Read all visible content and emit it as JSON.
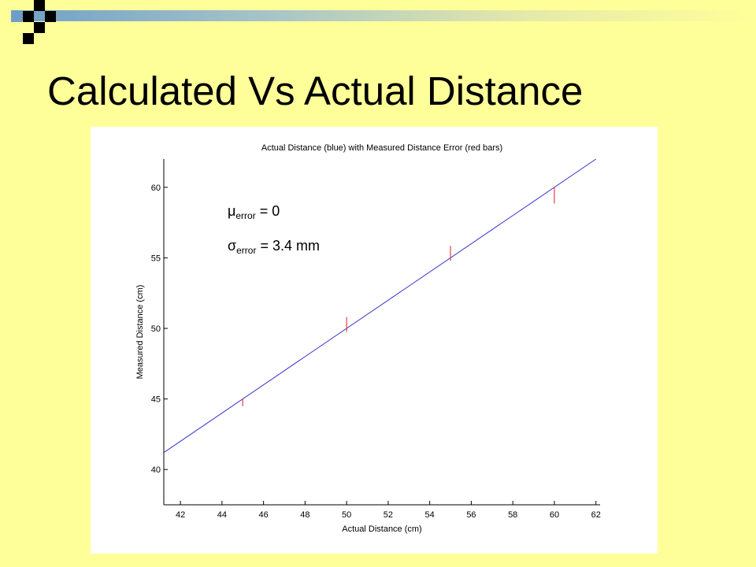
{
  "slide": {
    "title": "Calculated Vs Actual Distance"
  },
  "colors": {
    "background": "#ffff99",
    "fit_line": "#3333cc",
    "error_bars": "#e0404a"
  },
  "chart_data": {
    "type": "line",
    "title": "Actual Distance (blue) with Measured Distance Error (red bars)",
    "xlabel": "Actual Distance (cm)",
    "ylabel": "Measured Distance (cm)",
    "xlim": [
      41.2,
      62.2
    ],
    "ylim": [
      37.5,
      62.0
    ],
    "xticks": [
      42,
      44,
      46,
      48,
      50,
      52,
      54,
      56,
      58,
      60,
      62
    ],
    "yticks": [
      40,
      45,
      50,
      55,
      60
    ],
    "grid": false,
    "series": [
      {
        "style": "line",
        "color": "#3333cc",
        "x": [
          41.2,
          62.0
        ],
        "y": [
          41.2,
          62.0
        ]
      },
      {
        "style": "error_bars",
        "color": "#e0404a",
        "points": [
          {
            "x": 45,
            "low": 44.5,
            "high": 45.05
          },
          {
            "x": 50,
            "low": 49.75,
            "high": 50.8
          },
          {
            "x": 55,
            "low": 54.8,
            "high": 55.85
          },
          {
            "x": 60,
            "low": 58.85,
            "high": 60.05
          }
        ]
      }
    ],
    "annotations": {
      "mu": {
        "symbol": "μ",
        "sub": "error",
        "value": "= 0"
      },
      "sigma": {
        "symbol": "σ",
        "sub": "error",
        "value": "= 3.4 mm"
      }
    }
  }
}
